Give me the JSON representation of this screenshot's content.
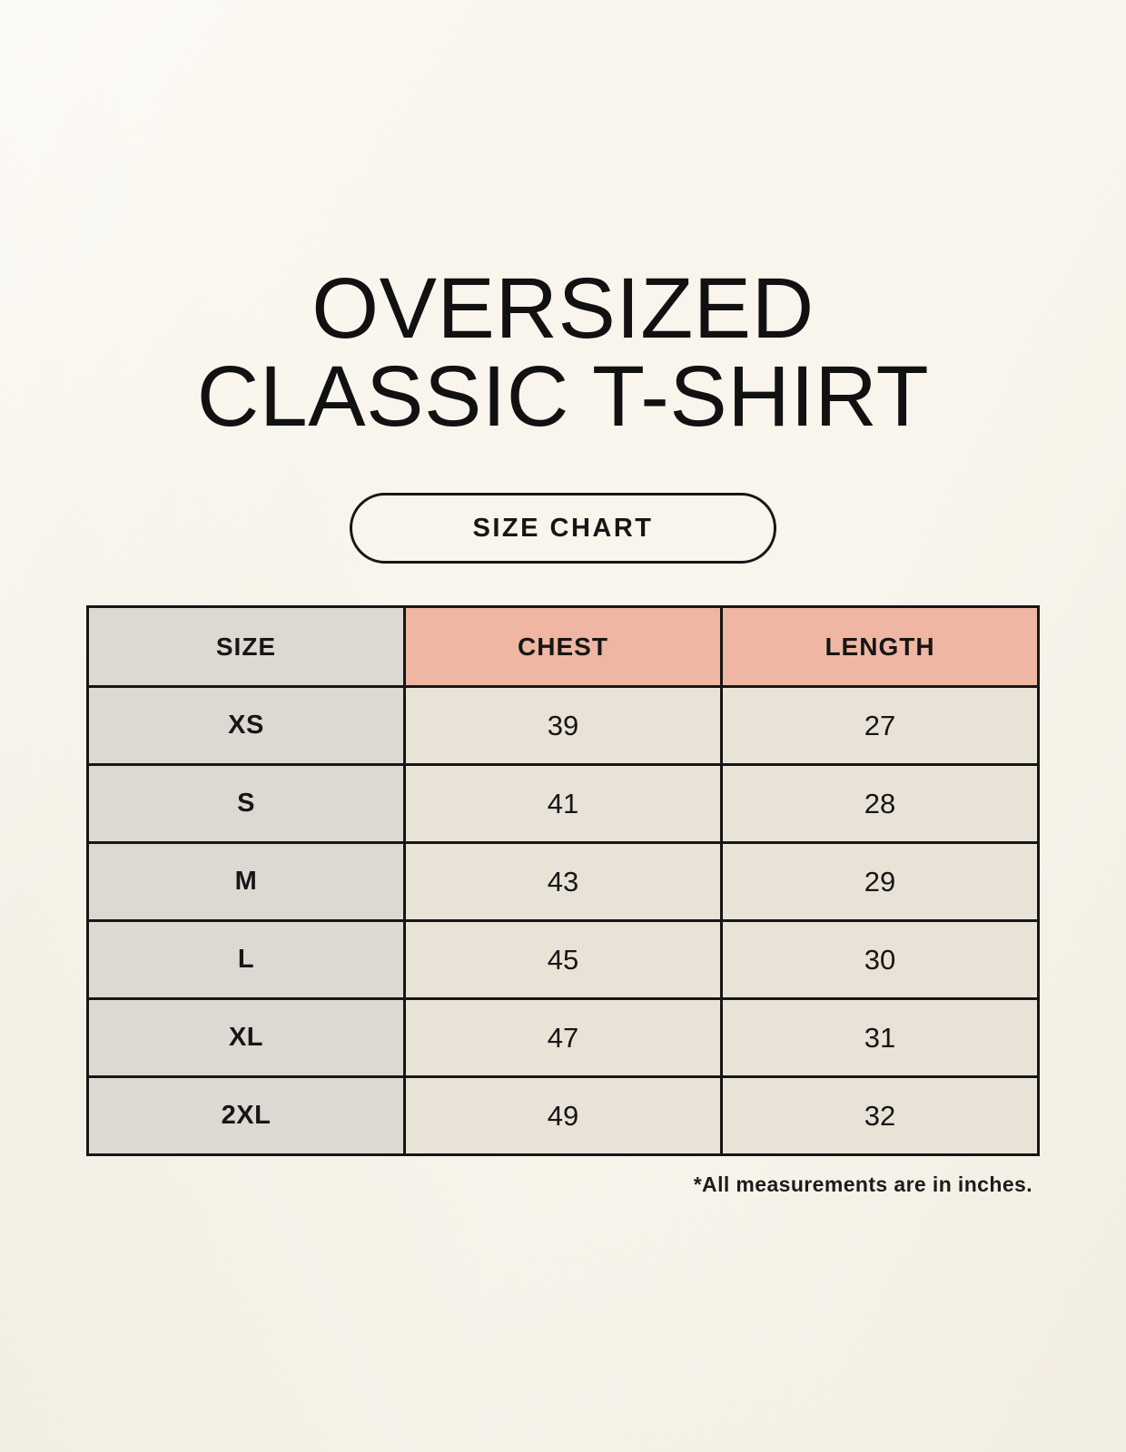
{
  "page": {
    "title_line1": "OVERSIZED",
    "title_line2": "CLASSIC T-SHIRT",
    "button_label": "SIZE CHART",
    "footnote": "*All measurements are in inches."
  },
  "table": {
    "headers": [
      "SIZE",
      "CHEST",
      "LENGTH"
    ],
    "rows": [
      {
        "size": "XS",
        "chest": "39",
        "length": "27"
      },
      {
        "size": "S",
        "chest": "41",
        "length": "28"
      },
      {
        "size": "M",
        "chest": "43",
        "length": "29"
      },
      {
        "size": "L",
        "chest": "45",
        "length": "30"
      },
      {
        "size": "XL",
        "chest": "47",
        "length": "31"
      },
      {
        "size": "2XL",
        "chest": "49",
        "length": "32"
      }
    ]
  },
  "chart_data": {
    "type": "table",
    "title": "OVERSIZED CLASSIC T-SHIRT — SIZE CHART",
    "columns": [
      "SIZE",
      "CHEST",
      "LENGTH"
    ],
    "rows": [
      [
        "XS",
        39,
        27
      ],
      [
        "S",
        41,
        28
      ],
      [
        "M",
        43,
        29
      ],
      [
        "L",
        45,
        30
      ],
      [
        "XL",
        47,
        31
      ],
      [
        "2XL",
        49,
        32
      ]
    ],
    "units": "inches"
  },
  "colors": {
    "page_background": "#f9f5ec",
    "size_column_background": "#ded8d2",
    "header_accent_background": "#f0b6a4",
    "cell_background": "#e9e2d7",
    "border": "#161616",
    "text": "#111111"
  }
}
